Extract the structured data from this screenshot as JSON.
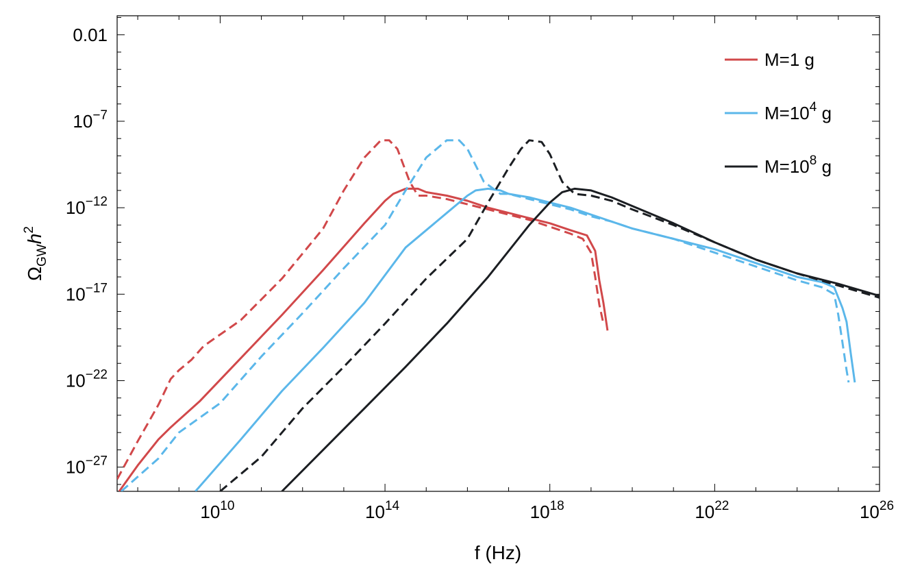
{
  "chart_data": {
    "type": "line",
    "title": "",
    "xlabel": "f (Hz)",
    "ylabel": "Ω_GW h^2",
    "xscale": "log",
    "yscale": "log",
    "x_log_range": [
      7.5,
      26
    ],
    "y_log_range": [
      -28.4,
      -0.9
    ],
    "x_ticks": [
      {
        "exp": 10,
        "label": "10",
        "sup": "10"
      },
      {
        "exp": 14,
        "label": "10",
        "sup": "14"
      },
      {
        "exp": 18,
        "label": "10",
        "sup": "18"
      },
      {
        "exp": 22,
        "label": "10",
        "sup": "22"
      },
      {
        "exp": 26,
        "label": "10",
        "sup": "26"
      }
    ],
    "y_ticks": [
      {
        "exp": -2,
        "label": "0.01",
        "sup": ""
      },
      {
        "exp": -7,
        "label": "10",
        "sup": "−7"
      },
      {
        "exp": -12,
        "label": "10",
        "sup": "−12"
      },
      {
        "exp": -17,
        "label": "10",
        "sup": "−17"
      },
      {
        "exp": -22,
        "label": "10",
        "sup": "−22"
      },
      {
        "exp": -27,
        "label": "10",
        "sup": "−27"
      }
    ],
    "legend_position": "top-right",
    "series": [
      {
        "name": "M=1 g solid",
        "legend": "M=1 g",
        "color": "#d1484a",
        "style": "solid",
        "points": [
          [
            7.55,
            -28.4
          ],
          [
            8.0,
            -26.9
          ],
          [
            8.5,
            -25.4
          ],
          [
            8.8,
            -24.7
          ],
          [
            9.5,
            -23.2
          ],
          [
            10.5,
            -20.7
          ],
          [
            11.5,
            -18.2
          ],
          [
            12.5,
            -15.6
          ],
          [
            13.5,
            -12.9
          ],
          [
            14.0,
            -11.6
          ],
          [
            14.2,
            -11.2
          ],
          [
            14.5,
            -10.9
          ],
          [
            14.8,
            -10.9
          ],
          [
            15.0,
            -11.1
          ],
          [
            15.5,
            -11.3
          ],
          [
            16.0,
            -11.6
          ],
          [
            16.5,
            -12.0
          ],
          [
            17.0,
            -12.3
          ],
          [
            17.5,
            -12.6
          ],
          [
            18.0,
            -12.9
          ],
          [
            18.5,
            -13.3
          ],
          [
            18.9,
            -13.6
          ],
          [
            19.1,
            -14.5
          ],
          [
            19.2,
            -16.2
          ],
          [
            19.3,
            -17.5
          ],
          [
            19.4,
            -19.1
          ]
        ]
      },
      {
        "name": "M=1 g dashed",
        "color": "#d1484a",
        "style": "dashed",
        "points": [
          [
            7.5,
            -27.7
          ],
          [
            8.0,
            -25.5
          ],
          [
            8.5,
            -23.4
          ],
          [
            8.8,
            -21.9
          ],
          [
            9.0,
            -21.4
          ],
          [
            9.3,
            -20.8
          ],
          [
            9.6,
            -20.0
          ],
          [
            10.5,
            -18.5
          ],
          [
            11.5,
            -16.1
          ],
          [
            12.5,
            -13.2
          ],
          [
            13.0,
            -11.0
          ],
          [
            13.5,
            -9.1
          ],
          [
            13.9,
            -8.1
          ],
          [
            14.1,
            -8.1
          ],
          [
            14.3,
            -8.6
          ],
          [
            14.6,
            -10.5
          ],
          [
            14.8,
            -11.3
          ],
          [
            15.0,
            -11.3
          ],
          [
            15.5,
            -11.5
          ],
          [
            16.0,
            -11.8
          ],
          [
            16.5,
            -12.1
          ],
          [
            17.0,
            -12.4
          ],
          [
            17.5,
            -12.7
          ],
          [
            18.0,
            -13.1
          ],
          [
            18.5,
            -13.5
          ],
          [
            18.8,
            -13.8
          ],
          [
            19.0,
            -14.6
          ],
          [
            19.1,
            -16.0
          ],
          [
            19.2,
            -17.6
          ],
          [
            19.3,
            -18.7
          ]
        ]
      },
      {
        "name": "M=10^4 g solid",
        "legend": "M=10",
        "legend_sup": "4",
        "legend_tail": " g",
        "color": "#5bb7ea",
        "style": "solid",
        "points": [
          [
            9.4,
            -28.4
          ],
          [
            10.5,
            -25.4
          ],
          [
            11.5,
            -22.6
          ],
          [
            12.5,
            -20.1
          ],
          [
            13.5,
            -17.5
          ],
          [
            14.5,
            -14.3
          ],
          [
            15.5,
            -12.3
          ],
          [
            16.0,
            -11.3
          ],
          [
            16.2,
            -11.0
          ],
          [
            16.5,
            -10.9
          ],
          [
            16.8,
            -11.0
          ],
          [
            17.0,
            -11.2
          ],
          [
            17.5,
            -11.4
          ],
          [
            18.0,
            -11.7
          ],
          [
            18.5,
            -12.0
          ],
          [
            19.0,
            -12.4
          ],
          [
            19.5,
            -12.8
          ],
          [
            20.0,
            -13.2
          ],
          [
            21.0,
            -13.8
          ],
          [
            22.0,
            -14.4
          ],
          [
            23.0,
            -15.2
          ],
          [
            24.0,
            -16.0
          ],
          [
            24.6,
            -16.3
          ],
          [
            24.9,
            -16.6
          ],
          [
            25.1,
            -17.8
          ],
          [
            25.2,
            -18.6
          ],
          [
            25.3,
            -20.4
          ],
          [
            25.4,
            -22.1
          ]
        ]
      },
      {
        "name": "M=10^4 g dashed",
        "color": "#5bb7ea",
        "style": "dashed",
        "points": [
          [
            7.6,
            -28.4
          ],
          [
            8.5,
            -26.5
          ],
          [
            9.0,
            -25.0
          ],
          [
            10.0,
            -23.3
          ],
          [
            11.0,
            -20.6
          ],
          [
            12.0,
            -18.1
          ],
          [
            13.0,
            -15.5
          ],
          [
            14.0,
            -13.0
          ],
          [
            14.5,
            -11.0
          ],
          [
            15.0,
            -9.1
          ],
          [
            15.5,
            -8.1
          ],
          [
            15.8,
            -8.1
          ],
          [
            16.0,
            -8.6
          ],
          [
            16.4,
            -10.5
          ],
          [
            16.8,
            -11.2
          ],
          [
            17.0,
            -11.2
          ],
          [
            17.5,
            -11.5
          ],
          [
            18.0,
            -11.8
          ],
          [
            18.5,
            -12.1
          ],
          [
            19.0,
            -12.5
          ],
          [
            19.5,
            -12.8
          ],
          [
            20.0,
            -13.2
          ],
          [
            21.0,
            -13.8
          ],
          [
            22.0,
            -14.6
          ],
          [
            23.0,
            -15.4
          ],
          [
            24.0,
            -16.2
          ],
          [
            24.6,
            -16.6
          ],
          [
            24.9,
            -17.0
          ],
          [
            25.0,
            -18.2
          ],
          [
            25.1,
            -19.8
          ],
          [
            25.2,
            -21.4
          ],
          [
            25.25,
            -22.1
          ]
        ]
      },
      {
        "name": "M=10^8 g solid",
        "legend": "M=10",
        "legend_sup": "8",
        "legend_tail": " g",
        "color": "#1b1e22",
        "style": "solid",
        "points": [
          [
            11.5,
            -28.4
          ],
          [
            12.5,
            -26.0
          ],
          [
            13.5,
            -23.6
          ],
          [
            14.5,
            -21.2
          ],
          [
            15.5,
            -18.7
          ],
          [
            16.5,
            -16.0
          ],
          [
            17.5,
            -13.0
          ],
          [
            18.0,
            -11.7
          ],
          [
            18.3,
            -11.1
          ],
          [
            18.6,
            -10.9
          ],
          [
            19.0,
            -11.0
          ],
          [
            19.5,
            -11.4
          ],
          [
            20.0,
            -11.9
          ],
          [
            21.0,
            -12.9
          ],
          [
            22.0,
            -14.0
          ],
          [
            23.0,
            -15.0
          ],
          [
            24.0,
            -15.8
          ],
          [
            25.0,
            -16.4
          ],
          [
            26.0,
            -17.1
          ]
        ]
      },
      {
        "name": "M=10^8 g dashed",
        "color": "#1b1e22",
        "style": "dashed",
        "points": [
          [
            10.0,
            -28.4
          ],
          [
            11.0,
            -26.4
          ],
          [
            12.0,
            -23.6
          ],
          [
            13.0,
            -21.2
          ],
          [
            14.0,
            -18.7
          ],
          [
            15.0,
            -16.1
          ],
          [
            16.0,
            -13.8
          ],
          [
            16.5,
            -11.7
          ],
          [
            17.0,
            -9.7
          ],
          [
            17.3,
            -8.6
          ],
          [
            17.5,
            -8.1
          ],
          [
            17.8,
            -8.2
          ],
          [
            18.0,
            -8.9
          ],
          [
            18.3,
            -10.5
          ],
          [
            18.6,
            -11.2
          ],
          [
            19.0,
            -11.3
          ],
          [
            19.5,
            -11.6
          ],
          [
            20.0,
            -12.1
          ],
          [
            21.0,
            -13.0
          ],
          [
            22.0,
            -14.0
          ],
          [
            23.0,
            -15.0
          ],
          [
            24.0,
            -15.8
          ],
          [
            25.0,
            -16.5
          ],
          [
            26.0,
            -17.2
          ]
        ]
      }
    ]
  }
}
